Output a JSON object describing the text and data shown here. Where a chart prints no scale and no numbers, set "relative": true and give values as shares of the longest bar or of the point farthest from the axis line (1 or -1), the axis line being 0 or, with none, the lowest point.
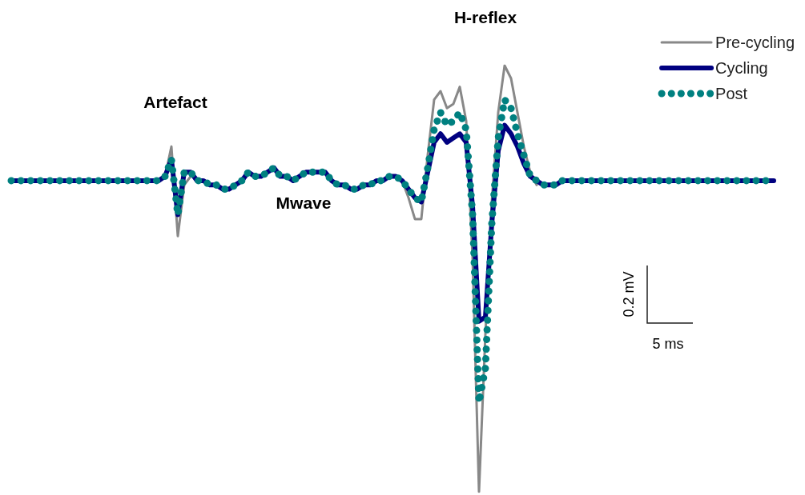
{
  "chart_data": {
    "type": "line",
    "relative": true,
    "legend": "top right",
    "grid": false,
    "annotations": [
      "H-reflex",
      "Artefact",
      "Mwave",
      "0.2 mV",
      "5 ms"
    ],
    "categories": [
      null,
      null,
      null,
      null,
      null,
      null,
      null,
      null,
      null,
      null,
      null,
      null,
      null,
      null,
      null,
      null,
      null,
      null,
      null,
      null,
      null,
      null,
      null,
      null,
      null,
      null,
      null,
      null,
      null,
      null,
      null,
      null,
      null,
      null,
      null,
      null,
      null,
      null,
      null,
      null,
      null,
      null,
      null,
      null,
      null,
      null,
      null,
      null,
      null,
      null,
      null,
      null,
      null,
      null,
      null,
      null,
      null,
      null,
      null,
      null,
      null,
      null,
      null,
      null,
      null,
      null,
      null,
      null,
      null,
      null,
      null,
      null,
      null,
      null,
      null,
      null,
      null,
      null,
      null,
      null,
      null,
      null,
      null,
      null,
      null,
      null,
      null,
      null,
      null,
      null,
      null,
      null,
      null,
      null,
      null,
      null,
      null,
      null,
      null,
      null,
      null,
      null,
      null,
      null,
      null,
      null,
      null,
      null,
      null,
      null,
      null,
      null,
      null,
      null,
      null,
      null,
      null,
      null,
      null,
      null
    ],
    "series": [
      {
        "name": "Pre-cycling",
        "color": "#888888",
        "line_style": "solid",
        "values": [
          null,
          null,
          null,
          null,
          null,
          null,
          null,
          null,
          null,
          null,
          null,
          null,
          null,
          null,
          null,
          null,
          null,
          null,
          null,
          null,
          null,
          null,
          null,
          null,
          0.74,
          0.81,
          0.6,
          0.72,
          0.74,
          null,
          null,
          null,
          null,
          null,
          null,
          null,
          null,
          null,
          null,
          null,
          null,
          null,
          null,
          null,
          null,
          null,
          null,
          null,
          null,
          null,
          null,
          null,
          null,
          null,
          null,
          null,
          null,
          null,
          null,
          null,
          null,
          0.73,
          0.69,
          0.64,
          0.64,
          0.79,
          0.92,
          0.94,
          0.9,
          0.91,
          0.95,
          0.87,
          0.55,
          0,
          0.37,
          0.68,
          0.89,
          1,
          0.97,
          0.89,
          0.81,
          0.75,
          0.72,
          null,
          null,
          null,
          null,
          null,
          null,
          null,
          null,
          null,
          null,
          null,
          null,
          null,
          null,
          null,
          null,
          null,
          null,
          null,
          null,
          null,
          null,
          null,
          null,
          null,
          null,
          null,
          null,
          null,
          null,
          null,
          null,
          null,
          null,
          null,
          null,
          null
        ]
      },
      {
        "name": "Cycling",
        "color": "#000080",
        "line_style": "solid",
        "values": [
          0.73,
          0.73,
          0.73,
          0.73,
          0.73,
          0.73,
          0.73,
          0.73,
          0.73,
          0.73,
          0.73,
          0.73,
          0.73,
          0.73,
          0.73,
          0.73,
          0.73,
          0.73,
          0.73,
          0.73,
          0.73,
          0.73,
          0.73,
          0.73,
          0.74,
          0.78,
          0.65,
          0.75,
          0.75,
          0.73,
          0.73,
          0.72,
          0.72,
          0.71,
          0.71,
          0.72,
          0.73,
          0.75,
          0.74,
          0.74,
          0.75,
          0.76,
          0.74,
          0.74,
          0.73,
          0.74,
          0.75,
          0.75,
          0.75,
          0.75,
          0.73,
          0.72,
          0.72,
          0.71,
          0.71,
          0.72,
          0.72,
          0.73,
          0.73,
          0.74,
          0.74,
          0.73,
          0.71,
          0.69,
          0.68,
          0.75,
          0.82,
          0.84,
          0.82,
          0.83,
          0.84,
          0.82,
          0.67,
          0.4,
          0.41,
          0.63,
          0.8,
          0.86,
          0.84,
          0.81,
          0.77,
          0.74,
          0.73,
          0.72,
          0.72,
          0.72,
          0.73,
          0.73,
          0.73,
          0.73,
          0.73,
          0.73,
          0.73,
          0.73,
          0.73,
          0.73,
          0.73,
          0.73,
          0.73,
          0.73,
          0.73,
          0.73,
          0.73,
          0.73,
          0.73,
          0.73,
          0.73,
          0.73,
          0.73,
          0.73,
          0.73,
          0.73,
          0.73,
          0.73,
          0.73,
          0.73,
          0.73,
          0.73,
          0.73,
          0.73
        ]
      },
      {
        "name": "Post",
        "color": "#008080",
        "line_style": "dotted",
        "values": [
          0.73,
          0.73,
          0.73,
          0.73,
          0.73,
          0.73,
          0.73,
          0.73,
          0.73,
          0.73,
          0.73,
          0.73,
          0.73,
          0.73,
          0.73,
          0.73,
          0.73,
          0.73,
          0.73,
          0.73,
          0.73,
          0.73,
          0.73,
          0.73,
          0.74,
          0.78,
          0.65,
          0.75,
          0.75,
          0.73,
          0.73,
          0.72,
          0.72,
          0.71,
          0.71,
          0.72,
          0.73,
          0.75,
          0.74,
          0.74,
          0.75,
          0.76,
          0.74,
          0.74,
          0.73,
          0.74,
          0.75,
          0.75,
          0.75,
          0.75,
          0.73,
          0.72,
          0.72,
          0.71,
          0.71,
          0.72,
          0.72,
          0.73,
          0.73,
          0.74,
          0.74,
          0.73,
          0.71,
          0.69,
          0.68,
          0.76,
          0.85,
          0.89,
          0.86,
          0.87,
          0.89,
          0.85,
          0.65,
          0.21,
          0.29,
          0.63,
          0.83,
          0.92,
          0.9,
          0.84,
          0.79,
          0.74,
          0.73,
          0.72,
          0.72,
          0.72,
          0.73,
          0.73,
          0.73,
          0.73,
          0.73,
          0.73,
          0.73,
          0.73,
          0.73,
          0.73,
          0.73,
          0.73,
          0.73,
          0.73,
          0.73,
          0.73,
          0.73,
          0.73,
          0.73,
          0.73,
          0.73,
          0.73,
          0.73,
          0.73,
          0.73,
          0.73,
          0.73,
          0.73,
          0.73,
          0.73,
          0.73,
          0.73,
          0.73,
          0.73
        ]
      }
    ]
  }
}
